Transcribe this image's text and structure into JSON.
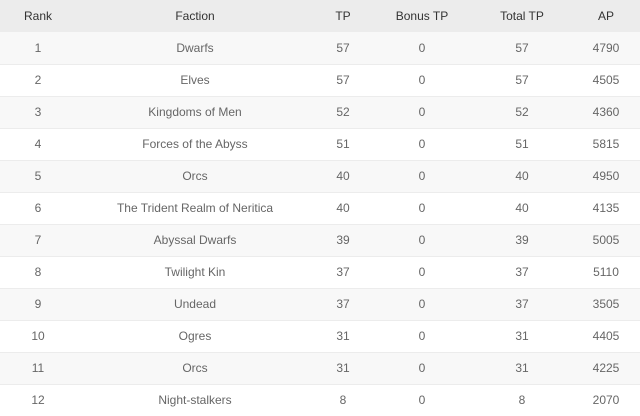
{
  "table": {
    "headers": [
      "Rank",
      "Faction",
      "TP",
      "Bonus TP",
      "Total TP",
      "AP"
    ],
    "rows": [
      [
        "1",
        "Dwarfs",
        "57",
        "0",
        "57",
        "4790"
      ],
      [
        "2",
        "Elves",
        "57",
        "0",
        "57",
        "4505"
      ],
      [
        "3",
        "Kingdoms of Men",
        "52",
        "0",
        "52",
        "4360"
      ],
      [
        "4",
        "Forces of the Abyss",
        "51",
        "0",
        "51",
        "5815"
      ],
      [
        "5",
        "Orcs",
        "40",
        "0",
        "40",
        "4950"
      ],
      [
        "6",
        "The Trident Realm of Neritica",
        "40",
        "0",
        "40",
        "4135"
      ],
      [
        "7",
        "Abyssal Dwarfs",
        "39",
        "0",
        "39",
        "5005"
      ],
      [
        "8",
        "Twilight Kin",
        "37",
        "0",
        "37",
        "5110"
      ],
      [
        "9",
        "Undead",
        "37",
        "0",
        "37",
        "3505"
      ],
      [
        "10",
        "Ogres",
        "31",
        "0",
        "31",
        "4405"
      ],
      [
        "11",
        "Orcs",
        "31",
        "0",
        "31",
        "4225"
      ],
      [
        "12",
        "Night-stalkers",
        "8",
        "0",
        "8",
        "2070"
      ]
    ]
  },
  "colors": {
    "header_bg": "#ececec",
    "row_odd_bg": "#f8f8f8",
    "row_even_bg": "#ffffff",
    "text": "#666666",
    "header_text": "#333333"
  }
}
